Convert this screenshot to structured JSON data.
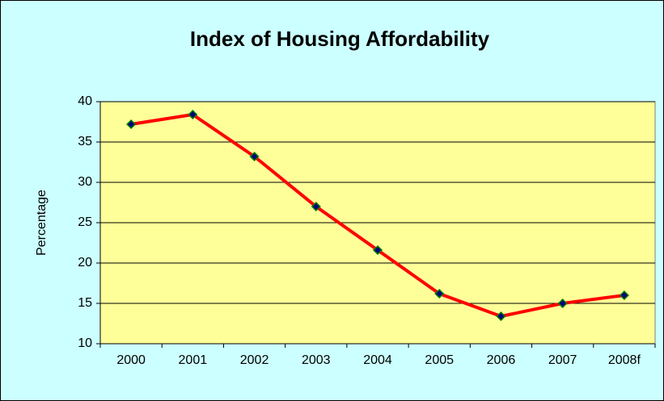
{
  "chart_data": {
    "type": "line",
    "title": "Index of Housing Affordability",
    "y_label": "Percentage",
    "categories": [
      "2000",
      "2001",
      "2002",
      "2003",
      "2004",
      "2005",
      "2006",
      "2007",
      "2008f"
    ],
    "series": [
      {
        "name": "Index of Housing Affordability",
        "color": "#ff0000",
        "marker_color": "#000080",
        "values": [
          37.2,
          38.4,
          33.2,
          27,
          21.6,
          16.2,
          13.4,
          15,
          16
        ]
      }
    ],
    "ylim": [
      10,
      40
    ],
    "yticks": [
      10,
      15,
      20,
      25,
      30,
      35,
      40
    ],
    "grid": true
  }
}
